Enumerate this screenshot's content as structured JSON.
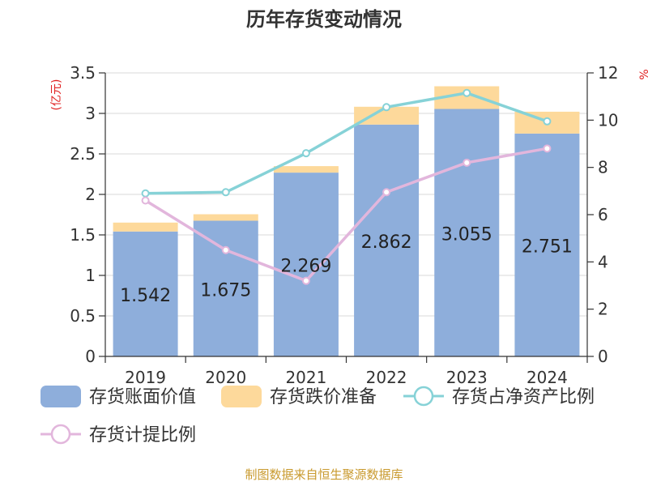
{
  "chart_data": {
    "type": "bar",
    "title": "历年存货变动情况",
    "categories": [
      "2019",
      "2020",
      "2021",
      "2022",
      "2023",
      "2024"
    ],
    "ylabel_left": "(亿元)",
    "ylabel_right": "%",
    "ylim_left": [
      0,
      3.5
    ],
    "ylim_right": [
      0,
      12
    ],
    "yticks_left": [
      "0",
      "0.5",
      "1",
      "1.5",
      "2",
      "2.5",
      "3",
      "3.5"
    ],
    "yticks_right": [
      "0",
      "2",
      "4",
      "6",
      "8",
      "10",
      "12"
    ],
    "grid": true,
    "stacked": true,
    "bar_series": [
      {
        "name": "存货账面价值",
        "color": "#8eaedb",
        "values": [
          1.542,
          1.675,
          2.269,
          2.862,
          3.055,
          2.751
        ],
        "labels": [
          "1.542",
          "1.675",
          "2.269",
          "2.862",
          "3.055",
          "2.751"
        ]
      },
      {
        "name": "存货跌价准备",
        "color": "#fdd99b",
        "values": [
          0.11,
          0.08,
          0.08,
          0.22,
          0.28,
          0.27
        ]
      }
    ],
    "line_series": [
      {
        "name": "存货占净资产比例",
        "color": "#86d2d7",
        "values": [
          6.9,
          6.95,
          8.6,
          10.55,
          11.15,
          9.95
        ]
      },
      {
        "name": "存货计提比例",
        "color": "#e2b6dc",
        "values": [
          6.6,
          4.5,
          3.2,
          6.95,
          8.2,
          8.8
        ]
      }
    ],
    "legend_position": "bottom"
  },
  "source": "制图数据来自恒生聚源数据库"
}
